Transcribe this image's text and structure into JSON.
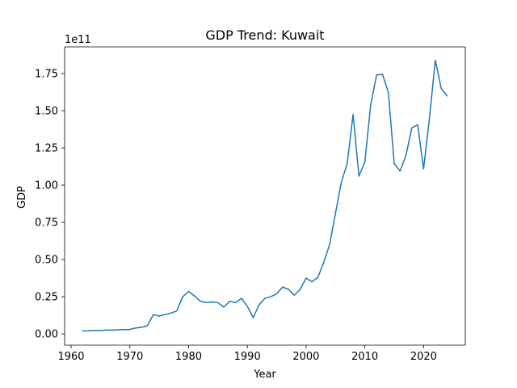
{
  "chart_data": {
    "type": "line",
    "title": "GDP Trend: Kuwait",
    "xlabel": "Year",
    "ylabel": "GDP",
    "y_scale_label": "1e11",
    "xlim": [
      1958.9,
      2027.1
    ],
    "ylim": [
      -0.0755,
      1.929
    ],
    "y_unit_multiplier": 100000000000,
    "x_ticks": [
      1960,
      1970,
      1980,
      1990,
      2000,
      2010,
      2020
    ],
    "y_ticks": [
      0.0,
      0.25,
      0.5,
      0.75,
      1.0,
      1.25,
      1.5,
      1.75
    ],
    "y_tick_labels": [
      "0.00",
      "0.25",
      "0.50",
      "0.75",
      "1.00",
      "1.25",
      "1.50",
      "1.75"
    ],
    "grid": false,
    "line_color": "#1f77b4",
    "series": [
      {
        "x": [
          1962,
          1963,
          1964,
          1965,
          1966,
          1967,
          1968,
          1969,
          1970,
          1971,
          1972,
          1973,
          1974,
          1975,
          1976,
          1977,
          1978,
          1979,
          1980,
          1981,
          1982,
          1983,
          1984,
          1985,
          1986,
          1987,
          1988,
          1989,
          1990,
          1991,
          1992,
          1993,
          1994,
          1995,
          1996,
          1997,
          1998,
          1999,
          2000,
          2001,
          2002,
          2003,
          2004,
          2005,
          2006,
          2007,
          2008,
          2009,
          2010,
          2011,
          2012,
          2013,
          2014,
          2015,
          2016,
          2017,
          2018,
          2019,
          2020,
          2021,
          2022,
          2023,
          2024
        ],
        "y": [
          0.02,
          0.021,
          0.023,
          0.023,
          0.026,
          0.026,
          0.028,
          0.029,
          0.03,
          0.04,
          0.045,
          0.055,
          0.13,
          0.12,
          0.13,
          0.14,
          0.155,
          0.25,
          0.285,
          0.255,
          0.22,
          0.21,
          0.215,
          0.21,
          0.18,
          0.22,
          0.21,
          0.24,
          0.185,
          0.11,
          0.195,
          0.24,
          0.25,
          0.27,
          0.315,
          0.3,
          0.26,
          0.3,
          0.375,
          0.35,
          0.38,
          0.48,
          0.6,
          0.81,
          1.02,
          1.145,
          1.475,
          1.06,
          1.155,
          1.54,
          1.74,
          1.745,
          1.625,
          1.145,
          1.095,
          1.2,
          1.385,
          1.405,
          1.11,
          1.45,
          1.84,
          1.65,
          1.6
        ]
      }
    ]
  }
}
